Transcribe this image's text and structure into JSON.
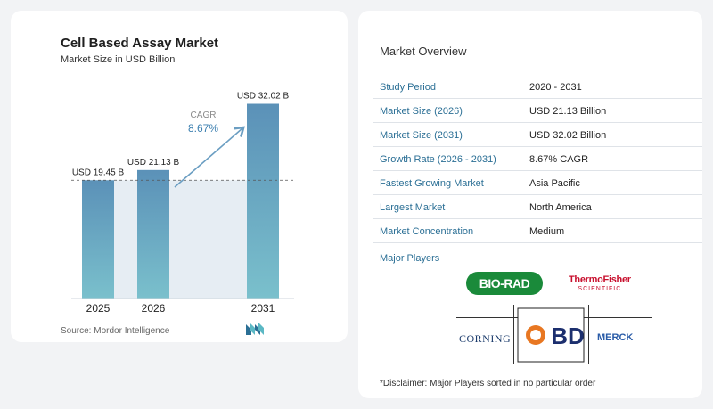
{
  "chart_data": {
    "type": "bar",
    "title": "Cell Based Assay Market",
    "subtitle": "Market Size in USD Billion",
    "categories": [
      "2025",
      "2026",
      "2031"
    ],
    "values": [
      19.45,
      21.13,
      32.02
    ],
    "value_labels": [
      "USD 19.45 B",
      "USD 21.13 B",
      "USD 32.02 B"
    ],
    "ylim": [
      0,
      34
    ],
    "reference_line": 19.45,
    "cagr_label": "CAGR",
    "cagr_value": "8.67%",
    "colors": {
      "bar_top": "#5b91b8",
      "bar_bottom": "#7ac0cc",
      "shade": "#e6edf3",
      "arrow": "#6b9ec2"
    }
  },
  "source": "Source:  Mordor Intelligence",
  "overview": {
    "title": "Market Overview",
    "rows": [
      {
        "label": "Study Period",
        "value": "2020 - 2031"
      },
      {
        "label": "Market Size (2026)",
        "value": "USD 21.13 Billion"
      },
      {
        "label": "Market Size (2031)",
        "value": "USD 32.02 Billion"
      },
      {
        "label": "Growth Rate (2026 - 2031)",
        "value": "8.67% CAGR"
      },
      {
        "label": "Fastest Growing Market",
        "value": "Asia Pacific"
      },
      {
        "label": "Largest Market",
        "value": "North America"
      },
      {
        "label": "Market Concentration",
        "value": "Medium"
      }
    ]
  },
  "players": {
    "label": "Major Players",
    "biorad": "BIO-RAD",
    "thermo_1": "ThermoFisher",
    "thermo_2": "SCIENTIFIC",
    "corning": "CORNING",
    "bd": "BD",
    "merck": "MERCK"
  },
  "disclaimer": "*Disclaimer: Major Players sorted in no particular order"
}
